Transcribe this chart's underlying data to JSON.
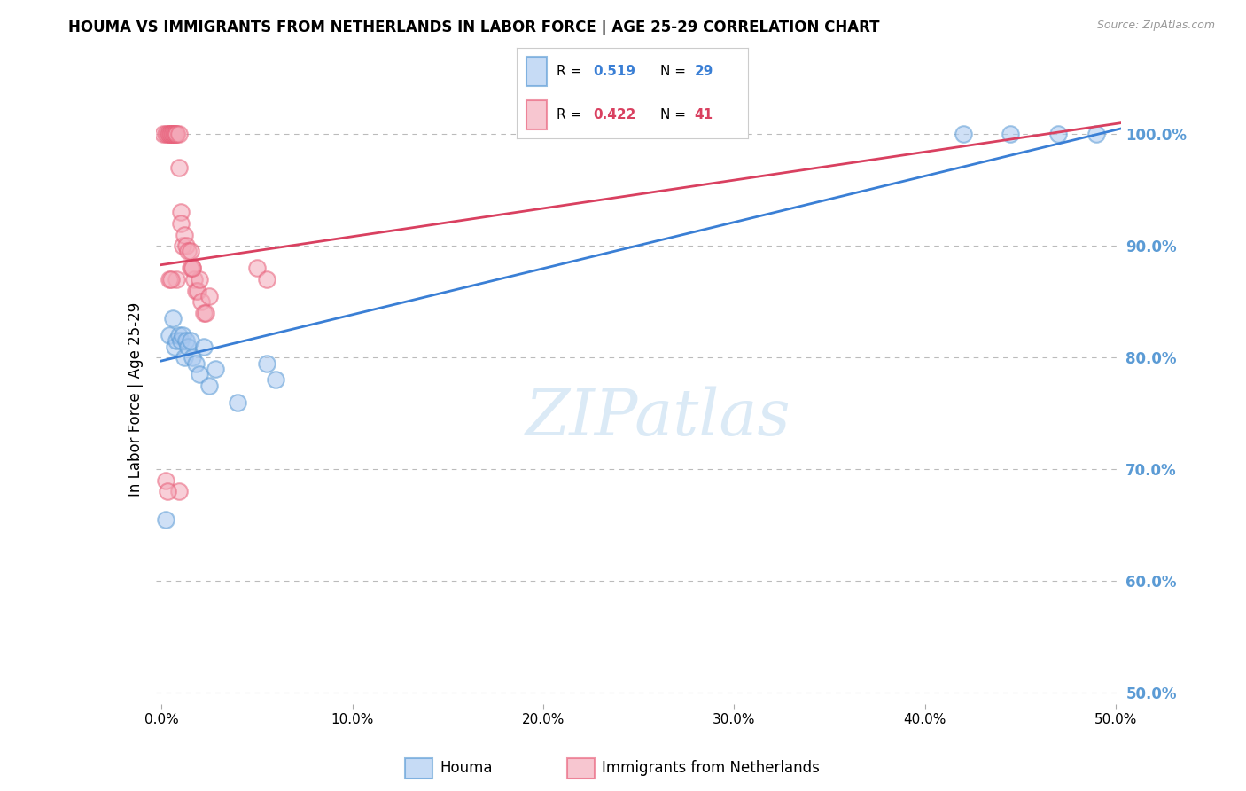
{
  "title": "HOUMA VS IMMIGRANTS FROM NETHERLANDS IN LABOR FORCE | AGE 25-29 CORRELATION CHART",
  "source": "Source: ZipAtlas.com",
  "ylabel": "In Labor Force | Age 25-29",
  "legend_blue_label": "Houma",
  "legend_pink_label": "Immigrants from Netherlands",
  "blue_color": "#A8C8F0",
  "pink_color": "#F4A8B8",
  "blue_edge_color": "#5B9BD5",
  "pink_edge_color": "#E8607A",
  "blue_line_color": "#3A7FD5",
  "pink_line_color": "#D94060",
  "right_axis_color": "#5B9BD5",
  "background_color": "#FFFFFF",
  "grid_color": "#BBBBBB",
  "xlim": [
    -0.003,
    0.503
  ],
  "ylim": [
    0.49,
    1.035
  ],
  "xtick_vals": [
    0.0,
    0.1,
    0.2,
    0.3,
    0.4,
    0.5
  ],
  "ytick_right_vals": [
    0.5,
    0.6,
    0.7,
    0.8,
    0.9,
    1.0
  ],
  "houma_x": [
    0.002,
    0.004,
    0.006,
    0.007,
    0.008,
    0.009,
    0.01,
    0.011,
    0.012,
    0.013,
    0.014,
    0.015,
    0.016,
    0.018,
    0.02,
    0.022,
    0.025,
    0.028,
    0.04,
    0.055,
    0.06,
    0.42,
    0.445,
    0.47,
    0.49
  ],
  "houma_y": [
    0.655,
    0.82,
    0.835,
    0.81,
    0.815,
    0.82,
    0.815,
    0.82,
    0.8,
    0.815,
    0.81,
    0.815,
    0.8,
    0.795,
    0.785,
    0.81,
    0.775,
    0.79,
    0.76,
    0.795,
    0.78,
    1.0,
    1.0,
    1.0,
    1.0
  ],
  "netherlands_x": [
    0.001,
    0.002,
    0.003,
    0.004,
    0.004,
    0.005,
    0.005,
    0.006,
    0.006,
    0.007,
    0.007,
    0.008,
    0.008,
    0.009,
    0.009,
    0.01,
    0.01,
    0.011,
    0.012,
    0.013,
    0.014,
    0.015,
    0.016,
    0.017,
    0.018,
    0.019,
    0.02,
    0.021,
    0.022,
    0.023,
    0.025,
    0.05,
    0.055,
    0.015,
    0.016,
    0.008,
    0.009,
    0.002,
    0.003,
    0.004,
    0.005
  ],
  "netherlands_y": [
    1.0,
    1.0,
    1.0,
    1.0,
    1.0,
    1.0,
    1.0,
    1.0,
    1.0,
    1.0,
    1.0,
    1.0,
    1.0,
    1.0,
    0.97,
    0.93,
    0.92,
    0.9,
    0.91,
    0.9,
    0.895,
    0.895,
    0.88,
    0.87,
    0.86,
    0.86,
    0.87,
    0.85,
    0.84,
    0.84,
    0.855,
    0.88,
    0.87,
    0.88,
    0.88,
    0.87,
    0.68,
    0.69,
    0.68,
    0.87,
    0.87
  ],
  "blue_line_x0": 0.0,
  "blue_line_y0": 0.797,
  "blue_line_x1": 0.503,
  "blue_line_y1": 1.005,
  "pink_line_x0": 0.0,
  "pink_line_y0": 0.883,
  "pink_line_x1": 0.503,
  "pink_line_y1": 1.01
}
